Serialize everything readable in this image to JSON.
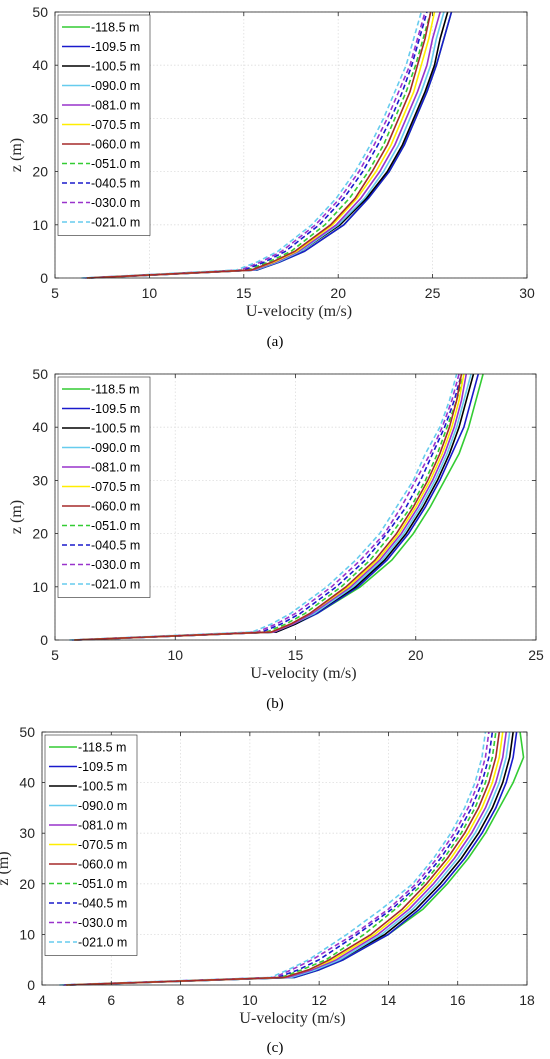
{
  "legend_labels": [
    "-118.5 m",
    "-109.5 m",
    "-100.5 m",
    "-090.0 m",
    "-081.0 m",
    "-070.5 m",
    "-060.0 m",
    "-051.0 m",
    "-040.5 m",
    "-030.0 m",
    "-021.0 m"
  ],
  "series_colors": [
    "#33cc33",
    "#1a1acc",
    "#000000",
    "#66ccee",
    "#9933cc",
    "#ffee00",
    "#a52a2a",
    "#33cc33",
    "#1a1acc",
    "#9933cc",
    "#66ccee"
  ],
  "series_dashed": [
    false,
    false,
    false,
    false,
    false,
    false,
    false,
    true,
    true,
    true,
    true
  ],
  "chart_data": [
    {
      "type": "line",
      "caption": "(a)",
      "xlabel": "U-velocity (m/s)",
      "ylabel": "z (m)",
      "xlim": [
        5,
        30
      ],
      "ylim": [
        0,
        50
      ],
      "xticks": [
        5,
        10,
        15,
        20,
        25,
        30
      ],
      "yticks": [
        0,
        10,
        20,
        30,
        40,
        50
      ],
      "grid": true,
      "legend_position": "top-left",
      "z": [
        0,
        1.5,
        3,
        5,
        10,
        15,
        20,
        25,
        30,
        35,
        40,
        45,
        50
      ],
      "series": [
        {
          "name": "-118.5 m",
          "values": [
            6.9,
            15.7,
            16.9,
            18.2,
            20.3,
            21.6,
            22.7,
            23.5,
            24.1,
            24.7,
            25.2,
            25.6,
            26.0
          ]
        },
        {
          "name": "-109.5 m",
          "values": [
            6.9,
            15.7,
            16.9,
            18.2,
            20.3,
            21.6,
            22.7,
            23.5,
            24.1,
            24.7,
            25.2,
            25.6,
            26.0
          ]
        },
        {
          "name": "-100.5 m",
          "values": [
            6.8,
            15.6,
            16.8,
            18.0,
            20.1,
            21.5,
            22.6,
            23.4,
            24.0,
            24.6,
            25.1,
            25.4,
            25.8
          ]
        },
        {
          "name": "-090.0 m",
          "values": [
            6.8,
            15.6,
            16.8,
            18.0,
            20.0,
            21.4,
            22.4,
            23.2,
            23.8,
            24.4,
            24.9,
            25.2,
            25.6
          ]
        },
        {
          "name": "-081.0 m",
          "values": [
            6.8,
            15.5,
            16.7,
            17.9,
            19.9,
            21.2,
            22.2,
            23.0,
            23.6,
            24.2,
            24.7,
            25.0,
            25.4
          ]
        },
        {
          "name": "-070.5 m",
          "values": [
            6.7,
            15.4,
            16.6,
            17.8,
            19.7,
            21.0,
            22.0,
            22.8,
            23.4,
            24.0,
            24.4,
            24.8,
            25.1
          ]
        },
        {
          "name": "-060.0 m",
          "values": [
            6.7,
            15.4,
            16.5,
            17.7,
            19.6,
            20.9,
            21.8,
            22.6,
            23.2,
            23.8,
            24.2,
            24.6,
            24.9
          ]
        },
        {
          "name": "-051.0 m",
          "values": [
            6.7,
            15.2,
            16.3,
            17.5,
            19.3,
            20.6,
            21.6,
            22.4,
            23.0,
            23.6,
            24.1,
            24.5,
            24.9
          ]
        },
        {
          "name": "-040.5 m",
          "values": [
            6.6,
            15.0,
            16.1,
            17.2,
            19.0,
            20.3,
            21.3,
            22.1,
            22.8,
            23.4,
            23.9,
            24.3,
            24.7
          ]
        },
        {
          "name": "-030.0 m",
          "values": [
            6.5,
            14.8,
            15.9,
            17.0,
            18.8,
            20.1,
            21.1,
            21.9,
            22.6,
            23.2,
            23.8,
            24.2,
            24.6
          ]
        },
        {
          "name": "-021.0 m",
          "values": [
            6.4,
            14.6,
            15.7,
            16.8,
            18.6,
            19.9,
            20.9,
            21.7,
            22.4,
            23.0,
            23.6,
            24.0,
            24.4
          ]
        }
      ]
    },
    {
      "type": "line",
      "caption": "(b)",
      "xlabel": "U-velocity (m/s)",
      "ylabel": "z (m)",
      "xlim": [
        5,
        25
      ],
      "ylim": [
        0,
        50
      ],
      "xticks": [
        5,
        10,
        15,
        20,
        25
      ],
      "yticks": [
        0,
        10,
        20,
        30,
        40,
        50
      ],
      "grid": true,
      "legend_position": "top-left",
      "z": [
        0,
        1.5,
        3,
        5,
        10,
        15,
        20,
        25,
        30,
        35,
        40,
        45,
        50
      ],
      "series": [
        {
          "name": "-118.5 m",
          "values": [
            5.9,
            14.2,
            15.0,
            15.9,
            17.7,
            19.0,
            19.9,
            20.6,
            21.2,
            21.8,
            22.2,
            22.5,
            22.8
          ]
        },
        {
          "name": "-109.5 m",
          "values": [
            5.9,
            14.2,
            15.0,
            15.9,
            17.6,
            18.8,
            19.7,
            20.4,
            21.0,
            21.5,
            22.0,
            22.3,
            22.6
          ]
        },
        {
          "name": "-100.5 m",
          "values": [
            5.9,
            14.2,
            15.0,
            15.8,
            17.5,
            18.7,
            19.6,
            20.3,
            20.9,
            21.4,
            21.8,
            22.1,
            22.4
          ]
        },
        {
          "name": "-090.0 m",
          "values": [
            5.9,
            14.1,
            14.9,
            15.8,
            17.4,
            18.6,
            19.5,
            20.2,
            20.8,
            21.3,
            21.7,
            22.0,
            22.3
          ]
        },
        {
          "name": "-081.0 m",
          "values": [
            5.9,
            14.1,
            14.9,
            15.7,
            17.3,
            18.5,
            19.4,
            20.1,
            20.7,
            21.2,
            21.6,
            21.9,
            22.1
          ]
        },
        {
          "name": "-070.5 m",
          "values": [
            5.8,
            14.0,
            14.8,
            15.6,
            17.2,
            18.4,
            19.3,
            20.0,
            20.6,
            21.1,
            21.5,
            21.8,
            22.0
          ]
        },
        {
          "name": "-060.0 m",
          "values": [
            5.8,
            14.0,
            14.8,
            15.6,
            17.1,
            18.3,
            19.2,
            19.9,
            20.5,
            21.0,
            21.4,
            21.7,
            21.9
          ]
        },
        {
          "name": "-051.0 m",
          "values": [
            5.8,
            13.8,
            14.6,
            15.4,
            16.9,
            18.1,
            19.0,
            19.8,
            20.4,
            20.9,
            21.3,
            21.7,
            22.0
          ]
        },
        {
          "name": "-040.5 m",
          "values": [
            5.7,
            13.6,
            14.4,
            15.2,
            16.7,
            17.9,
            18.8,
            19.6,
            20.2,
            20.7,
            21.2,
            21.6,
            21.9
          ]
        },
        {
          "name": "-030.0 m",
          "values": [
            5.7,
            13.4,
            14.2,
            15.0,
            16.5,
            17.7,
            18.7,
            19.4,
            20.0,
            20.6,
            21.1,
            21.5,
            21.8
          ]
        },
        {
          "name": "-021.0 m",
          "values": [
            5.6,
            13.2,
            14.0,
            14.8,
            16.3,
            17.5,
            18.5,
            19.2,
            19.9,
            20.4,
            21.0,
            21.4,
            21.7
          ]
        }
      ]
    },
    {
      "type": "line",
      "caption": "(c)",
      "xlabel": "U-velocity (m/s)",
      "ylabel": "z (m)",
      "xlim": [
        4,
        18
      ],
      "ylim": [
        0,
        50
      ],
      "xticks": [
        4,
        6,
        8,
        10,
        12,
        14,
        16,
        18
      ],
      "yticks": [
        0,
        10,
        20,
        30,
        40,
        50
      ],
      "grid": true,
      "legend_position": "top-left",
      "z": [
        0,
        1.5,
        3,
        5,
        10,
        15,
        20,
        25,
        30,
        35,
        40,
        45,
        50
      ],
      "series": [
        {
          "name": "-118.5 m",
          "values": [
            4.8,
            11.3,
            12.0,
            12.7,
            14.0,
            15.0,
            15.7,
            16.3,
            16.8,
            17.2,
            17.6,
            17.9,
            17.8
          ]
        },
        {
          "name": "-109.5 m",
          "values": [
            4.8,
            11.3,
            12.0,
            12.7,
            14.0,
            14.9,
            15.6,
            16.2,
            16.7,
            17.1,
            17.4,
            17.6,
            17.7
          ]
        },
        {
          "name": "-100.5 m",
          "values": [
            4.8,
            11.2,
            11.9,
            12.6,
            13.9,
            14.8,
            15.5,
            16.1,
            16.6,
            17.0,
            17.3,
            17.5,
            17.6
          ]
        },
        {
          "name": "-090.0 m",
          "values": [
            4.8,
            11.2,
            11.9,
            12.6,
            13.8,
            14.7,
            15.4,
            16.0,
            16.5,
            16.9,
            17.2,
            17.4,
            17.5
          ]
        },
        {
          "name": "-081.0 m",
          "values": [
            4.8,
            11.1,
            11.8,
            12.5,
            13.7,
            14.6,
            15.3,
            15.9,
            16.4,
            16.8,
            17.1,
            17.3,
            17.4
          ]
        },
        {
          "name": "-070.5 m",
          "values": [
            4.7,
            11.0,
            11.7,
            12.4,
            13.6,
            14.5,
            15.2,
            15.8,
            16.3,
            16.7,
            17.0,
            17.2,
            17.3
          ]
        },
        {
          "name": "-060.0 m",
          "values": [
            4.7,
            11.0,
            11.7,
            12.3,
            13.5,
            14.4,
            15.1,
            15.7,
            16.2,
            16.6,
            16.9,
            17.1,
            17.2
          ]
        },
        {
          "name": "-051.0 m",
          "values": [
            4.7,
            10.9,
            11.5,
            12.2,
            13.3,
            14.2,
            15.0,
            15.6,
            16.1,
            16.5,
            16.8,
            17.0,
            17.1
          ]
        },
        {
          "name": "-040.5 m",
          "values": [
            4.6,
            10.8,
            11.4,
            12.0,
            13.1,
            14.1,
            14.9,
            15.5,
            16.0,
            16.4,
            16.7,
            16.9,
            17.0
          ]
        },
        {
          "name": "-030.0 m",
          "values": [
            4.6,
            10.7,
            11.2,
            11.8,
            13.0,
            14.0,
            14.8,
            15.4,
            15.9,
            16.3,
            16.6,
            16.8,
            16.9
          ]
        },
        {
          "name": "-021.0 m",
          "values": [
            4.5,
            10.6,
            11.1,
            11.7,
            12.8,
            13.8,
            14.7,
            15.3,
            15.8,
            16.2,
            16.5,
            16.7,
            16.8
          ]
        }
      ]
    }
  ]
}
